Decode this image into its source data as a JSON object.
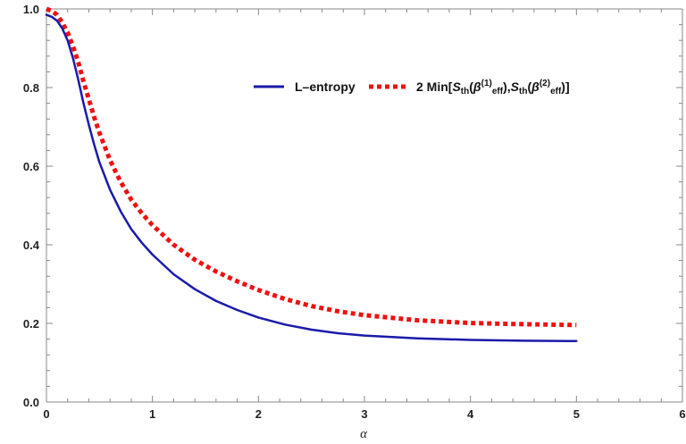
{
  "chart_data": {
    "type": "line",
    "xlabel": "α",
    "ylabel": "",
    "xlim": [
      0,
      6
    ],
    "ylim": [
      0,
      1.0
    ],
    "x_ticks": [
      "0",
      "1",
      "2",
      "3",
      "4",
      "5",
      "6"
    ],
    "y_ticks": [
      "0.0",
      "0.2",
      "0.4",
      "0.6",
      "0.8",
      "1.0"
    ],
    "grid": false,
    "legend_position": "top-right",
    "series": [
      {
        "name": "L–entropy",
        "color": "#1a1aaa",
        "style": "solid",
        "x": [
          0,
          0.05,
          0.1,
          0.15,
          0.2,
          0.25,
          0.3,
          0.35,
          0.4,
          0.45,
          0.5,
          0.6,
          0.7,
          0.8,
          0.9,
          1.0,
          1.2,
          1.4,
          1.6,
          1.8,
          2.0,
          2.25,
          2.5,
          2.75,
          3.0,
          3.5,
          4.0,
          4.5,
          5.0
        ],
        "y": [
          0.985,
          0.98,
          0.97,
          0.95,
          0.92,
          0.875,
          0.82,
          0.76,
          0.705,
          0.655,
          0.61,
          0.54,
          0.485,
          0.44,
          0.405,
          0.375,
          0.325,
          0.287,
          0.257,
          0.234,
          0.215,
          0.197,
          0.184,
          0.175,
          0.169,
          0.162,
          0.158,
          0.156,
          0.155
        ]
      },
      {
        "name": "2 Min[Sth(β(1)eff),Sth(β(2)eff)]",
        "legend_parts": {
          "prefix": "2 Min[",
          "s": "S",
          "th": "th",
          "beta": "β",
          "sup1": "(1)",
          "sup2": "(2)",
          "eff": "eff",
          "open": "(",
          "close": ")",
          "comma": ",",
          "suffix": "]"
        },
        "color": "#ee1111",
        "style": "dotted",
        "x": [
          0,
          0.05,
          0.1,
          0.15,
          0.2,
          0.25,
          0.3,
          0.35,
          0.4,
          0.45,
          0.5,
          0.6,
          0.7,
          0.8,
          0.9,
          1.0,
          1.2,
          1.4,
          1.6,
          1.8,
          2.0,
          2.25,
          2.5,
          2.75,
          3.0,
          3.5,
          4.0,
          4.5,
          5.0
        ],
        "y": [
          1.0,
          0.995,
          0.985,
          0.965,
          0.94,
          0.905,
          0.865,
          0.815,
          0.77,
          0.725,
          0.685,
          0.615,
          0.56,
          0.515,
          0.48,
          0.45,
          0.4,
          0.362,
          0.332,
          0.307,
          0.285,
          0.262,
          0.244,
          0.231,
          0.221,
          0.208,
          0.201,
          0.198,
          0.196
        ]
      }
    ]
  }
}
